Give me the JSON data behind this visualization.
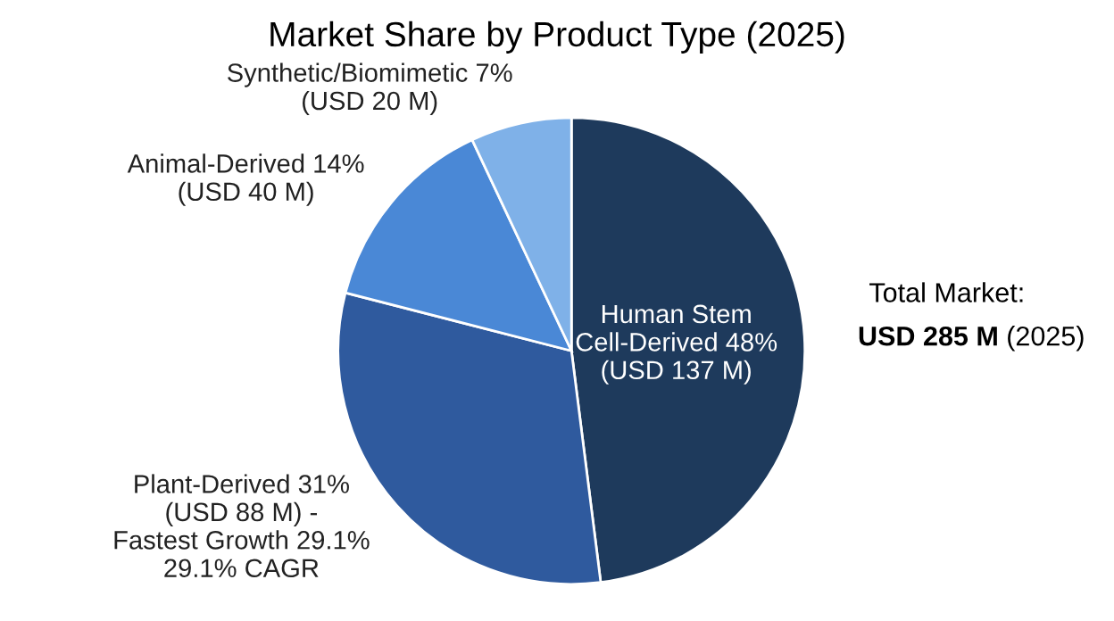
{
  "chart_data": {
    "type": "pie",
    "title": "Market Share by Product Type (2025)",
    "categories": [
      "Human Stem\nCell-Derived 48%\n(USD 137 M)",
      "Plant-Derived 31%\n(USD 88 M) -\nFastest Growth 29.1%\n29.1% CAGR",
      "Animal-Derived 14%\n(USD 40 M)",
      "Synthetic/Biomimetic 7%\n(USD 20 M)"
    ],
    "values": [
      48,
      31,
      14,
      7
    ],
    "colors": [
      "#1e3a5c",
      "#2f5a9e",
      "#4a88d6",
      "#7fb1e8"
    ],
    "annotations": [
      "Total Market:",
      "USD 285 M",
      "(2025)"
    ],
    "legend": false
  }
}
